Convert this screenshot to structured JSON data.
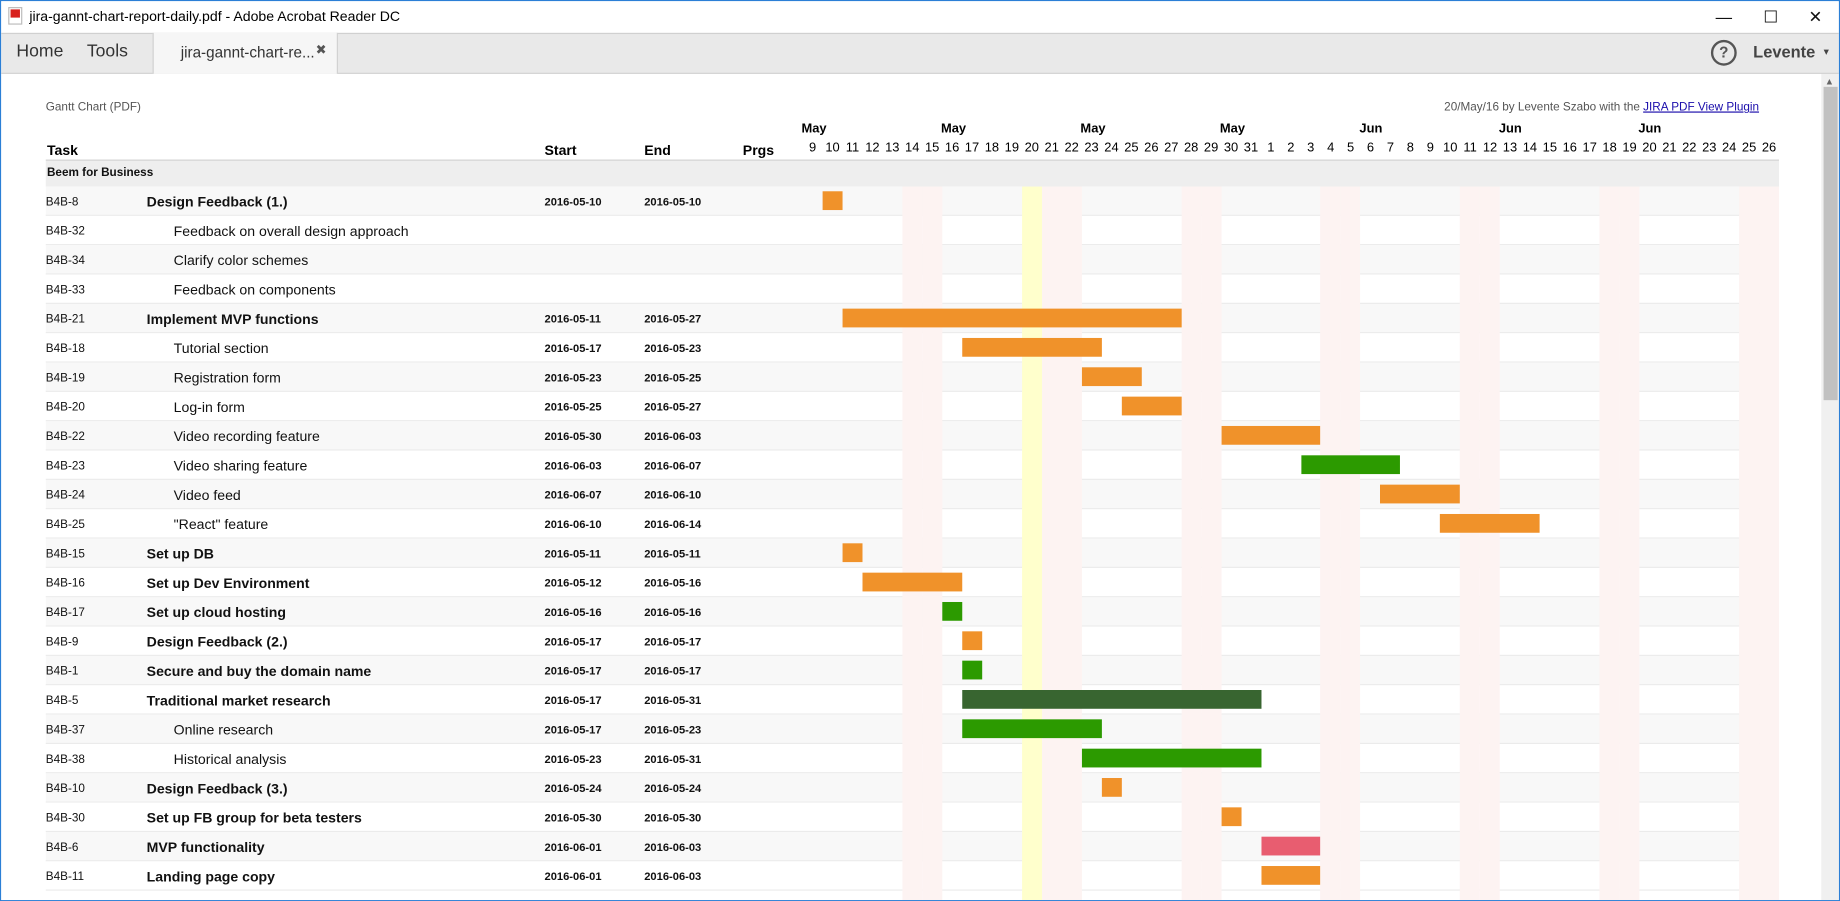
{
  "window": {
    "title": "jira-gannt-chart-report-daily.pdf - Adobe Acrobat Reader DC",
    "minimize": "—",
    "maximize": "☐",
    "close": "✕"
  },
  "toolbar": {
    "home": "Home",
    "tools": "Tools",
    "doc_tab": "jira-gannt-chart-re...",
    "doc_tab_close": "✖",
    "help": "?",
    "user": "Levente",
    "user_caret": "▾"
  },
  "report": {
    "title": "Gantt Chart (PDF)",
    "credit_prefix": "20/May/16 by Levente Szabo with the ",
    "credit_link": "JIRA PDF View Plugin"
  },
  "columns": {
    "task": "Task",
    "start": "Start",
    "end": "End",
    "progress": "Prgs"
  },
  "group": "Beem for Business",
  "today_index": 11,
  "colors": {
    "orange": "#f0922a",
    "green": "#2c9a00",
    "dark_green": "#386530",
    "red": "#e85d70",
    "weekend": "#fdf3f2",
    "today": "#ffffcc"
  },
  "chart_data": {
    "type": "gantt",
    "days": [
      "9",
      "10",
      "11",
      "12",
      "13",
      "14",
      "15",
      "16",
      "17",
      "18",
      "19",
      "20",
      "21",
      "22",
      "23",
      "24",
      "25",
      "26",
      "27",
      "28",
      "29",
      "30",
      "31",
      "1",
      "2",
      "3",
      "4",
      "5",
      "6",
      "7",
      "8",
      "9",
      "10",
      "11",
      "12",
      "13",
      "14",
      "15",
      "16",
      "17",
      "18",
      "19",
      "20",
      "21",
      "22",
      "23",
      "24",
      "25",
      "26"
    ],
    "months": [
      {
        "label": "May",
        "index": 0
      },
      {
        "label": "May",
        "index": 7
      },
      {
        "label": "May",
        "index": 14
      },
      {
        "label": "May",
        "index": 21
      },
      {
        "label": "Jun",
        "index": 28
      },
      {
        "label": "Jun",
        "index": 35
      },
      {
        "label": "Jun",
        "index": 42
      }
    ],
    "weekends": [
      5,
      6,
      12,
      13,
      19,
      20,
      26,
      27,
      33,
      34,
      40,
      41,
      47,
      48
    ],
    "tasks": [
      {
        "id": "B4B-8",
        "name": "Design Feedback (1.)",
        "parent": true,
        "start": "2016-05-10",
        "end": "2016-05-10",
        "s": 1,
        "e": 1,
        "color": "orange"
      },
      {
        "id": "B4B-32",
        "name": "Feedback on overall design approach",
        "parent": false,
        "start": "",
        "end": ""
      },
      {
        "id": "B4B-34",
        "name": "Clarify color schemes",
        "parent": false,
        "start": "",
        "end": ""
      },
      {
        "id": "B4B-33",
        "name": "Feedback on components",
        "parent": false,
        "start": "",
        "end": ""
      },
      {
        "id": "B4B-21",
        "name": "Implement MVP functions",
        "parent": true,
        "start": "2016-05-11",
        "end": "2016-05-27",
        "s": 2,
        "e": 18,
        "color": "orange"
      },
      {
        "id": "B4B-18",
        "name": "Tutorial section",
        "parent": false,
        "start": "2016-05-17",
        "end": "2016-05-23",
        "s": 8,
        "e": 14,
        "color": "orange"
      },
      {
        "id": "B4B-19",
        "name": "Registration form",
        "parent": false,
        "start": "2016-05-23",
        "end": "2016-05-25",
        "s": 14,
        "e": 16,
        "color": "orange"
      },
      {
        "id": "B4B-20",
        "name": "Log-in form",
        "parent": false,
        "start": "2016-05-25",
        "end": "2016-05-27",
        "s": 16,
        "e": 18,
        "color": "orange"
      },
      {
        "id": "B4B-22",
        "name": "Video recording feature",
        "parent": false,
        "start": "2016-05-30",
        "end": "2016-06-03",
        "s": 21,
        "e": 25,
        "color": "orange"
      },
      {
        "id": "B4B-23",
        "name": "Video sharing feature",
        "parent": false,
        "start": "2016-06-03",
        "end": "2016-06-07",
        "s": 25,
        "e": 29,
        "color": "green"
      },
      {
        "id": "B4B-24",
        "name": "Video feed",
        "parent": false,
        "start": "2016-06-07",
        "end": "2016-06-10",
        "s": 29,
        "e": 32,
        "color": "orange"
      },
      {
        "id": "B4B-25",
        "name": "\"React\" feature",
        "parent": false,
        "start": "2016-06-10",
        "end": "2016-06-14",
        "s": 32,
        "e": 36,
        "color": "orange"
      },
      {
        "id": "B4B-15",
        "name": "Set up DB",
        "parent": true,
        "start": "2016-05-11",
        "end": "2016-05-11",
        "s": 2,
        "e": 2,
        "color": "orange"
      },
      {
        "id": "B4B-16",
        "name": "Set up Dev Environment",
        "parent": true,
        "start": "2016-05-12",
        "end": "2016-05-16",
        "s": 3,
        "e": 7,
        "color": "orange"
      },
      {
        "id": "B4B-17",
        "name": "Set up cloud hosting",
        "parent": true,
        "start": "2016-05-16",
        "end": "2016-05-16",
        "s": 7,
        "e": 7,
        "color": "green"
      },
      {
        "id": "B4B-9",
        "name": "Design Feedback (2.)",
        "parent": true,
        "start": "2016-05-17",
        "end": "2016-05-17",
        "s": 8,
        "e": 8,
        "color": "orange"
      },
      {
        "id": "B4B-1",
        "name": "Secure and buy the domain name",
        "parent": true,
        "start": "2016-05-17",
        "end": "2016-05-17",
        "s": 8,
        "e": 8,
        "color": "green"
      },
      {
        "id": "B4B-5",
        "name": "Traditional market research",
        "parent": true,
        "start": "2016-05-17",
        "end": "2016-05-31",
        "s": 8,
        "e": 22,
        "color": "dark_green"
      },
      {
        "id": "B4B-37",
        "name": "Online research",
        "parent": false,
        "start": "2016-05-17",
        "end": "2016-05-23",
        "s": 8,
        "e": 14,
        "color": "green"
      },
      {
        "id": "B4B-38",
        "name": "Historical analysis",
        "parent": false,
        "start": "2016-05-23",
        "end": "2016-05-31",
        "s": 14,
        "e": 22,
        "color": "green"
      },
      {
        "id": "B4B-10",
        "name": "Design Feedback (3.)",
        "parent": true,
        "start": "2016-05-24",
        "end": "2016-05-24",
        "s": 15,
        "e": 15,
        "color": "orange"
      },
      {
        "id": "B4B-30",
        "name": "Set up FB group for beta testers",
        "parent": true,
        "start": "2016-05-30",
        "end": "2016-05-30",
        "s": 21,
        "e": 21,
        "color": "orange"
      },
      {
        "id": "B4B-6",
        "name": "MVP functionality",
        "parent": true,
        "start": "2016-06-01",
        "end": "2016-06-03",
        "s": 23,
        "e": 25,
        "color": "red"
      },
      {
        "id": "B4B-11",
        "name": "Landing page copy",
        "parent": true,
        "start": "2016-06-01",
        "end": "2016-06-03",
        "s": 23,
        "e": 25,
        "color": "orange"
      }
    ]
  }
}
